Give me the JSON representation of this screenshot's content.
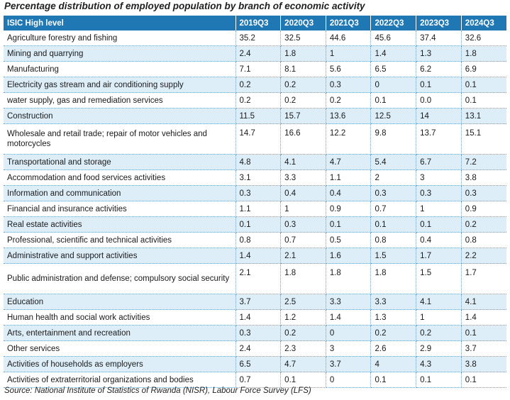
{
  "caption": "Percentage distribution of employed population by branch of economic activity",
  "source": "Source: National Institute of Statistics of Rwanda (NISR), Labour Force Survey (LFS)",
  "colors": {
    "header_bg": "#1f78b4",
    "header_text": "#ffffff",
    "shaded_row": "#ddeef9"
  },
  "table": {
    "headers": [
      "ISIC High level",
      "2019Q3",
      "2020Q3",
      "2021Q3",
      "2022Q3",
      "2023Q3",
      "2024Q3"
    ],
    "rows": [
      {
        "label": "Agriculture forestry and fishing",
        "values": [
          "35.2",
          "32.5",
          "44.6",
          "45.6",
          "37.4",
          "32.6"
        ]
      },
      {
        "label": "Mining and quarrying",
        "values": [
          "2.4",
          "1.8",
          "1",
          "1.4",
          "1.3",
          "1.8"
        ]
      },
      {
        "label": "Manufacturing",
        "values": [
          "7.1",
          "8.1",
          "5.6",
          "6.5",
          "6.2",
          "6.9"
        ]
      },
      {
        "label": "Electricity gas stream and air conditioning supply",
        "values": [
          "0.2",
          "0.2",
          "0.3",
          "0",
          "0.1",
          "0.1"
        ]
      },
      {
        "label": "water supply, gas and remediation services",
        "values": [
          "0.2",
          "0.2",
          "0.2",
          "0.1",
          "0.0",
          "0.1"
        ]
      },
      {
        "label": "Construction",
        "values": [
          "11.5",
          "15.7",
          "13.6",
          "12.5",
          "14",
          "13.1"
        ]
      },
      {
        "label": "Wholesale and retail trade; repair of motor vehicles and motorcycles",
        "values": [
          "14.7",
          "16.6",
          "12.2",
          "9.8",
          "13.7",
          "15.1"
        ]
      },
      {
        "label": "Transportational and storage",
        "values": [
          "4.8",
          "4.1",
          "4.7",
          "5.4",
          "6.7",
          "7.2"
        ]
      },
      {
        "label": "Accommodation and food services activities",
        "values": [
          "3.1",
          "3.3",
          "1.1",
          "2",
          "3",
          "3.8"
        ]
      },
      {
        "label": "Information and communication",
        "values": [
          "0.3",
          "0.4",
          "0.4",
          "0.3",
          "0.3",
          "0.3"
        ]
      },
      {
        "label": "Financial and insurance activities",
        "values": [
          "1.1",
          "1",
          "0.9",
          "0.7",
          "1",
          "0.9"
        ]
      },
      {
        "label": "Real estate activities",
        "values": [
          "0.1",
          "0.3",
          "0.1",
          "0.1",
          "0.1",
          "0.2"
        ]
      },
      {
        "label": "Professional, scientific and technical activities",
        "values": [
          "0.8",
          "0.7",
          "0.5",
          "0.8",
          "0.4",
          "0.8"
        ]
      },
      {
        "label": "Administrative and support activities",
        "values": [
          "1.4",
          "2.1",
          "1.6",
          "1.5",
          "1.7",
          "2.2"
        ]
      },
      {
        "label": "Public administration and defense; compulsory social security",
        "values": [
          "2.1",
          "1.8",
          "1.8",
          "1.8",
          "1.5",
          "1.7"
        ]
      },
      {
        "label": "Education",
        "values": [
          "3.7",
          "2.5",
          "3.3",
          "3.3",
          "4.1",
          "4.1"
        ]
      },
      {
        "label": "Human health and social work activities",
        "values": [
          "1.4",
          "1.2",
          "1.4",
          "1.3",
          "1",
          "1.4"
        ]
      },
      {
        "label": "Arts, entertainment and recreation",
        "values": [
          "0.3",
          "0.2",
          "0",
          "0.2",
          "0.2",
          "0.1"
        ]
      },
      {
        "label": "Other services",
        "values": [
          "2.4",
          "2.3",
          "3",
          "2.6",
          "2.9",
          "3.7"
        ]
      },
      {
        "label": "Activities of households as employers",
        "values": [
          "6.5",
          "4.7",
          "3.7",
          "4",
          "4.3",
          "3.8"
        ]
      },
      {
        "label": "Activities of extraterritorial organizations and bodies",
        "values": [
          "0.7",
          "0.1",
          "0",
          "0.1",
          "0.1",
          "0.1"
        ]
      }
    ]
  }
}
